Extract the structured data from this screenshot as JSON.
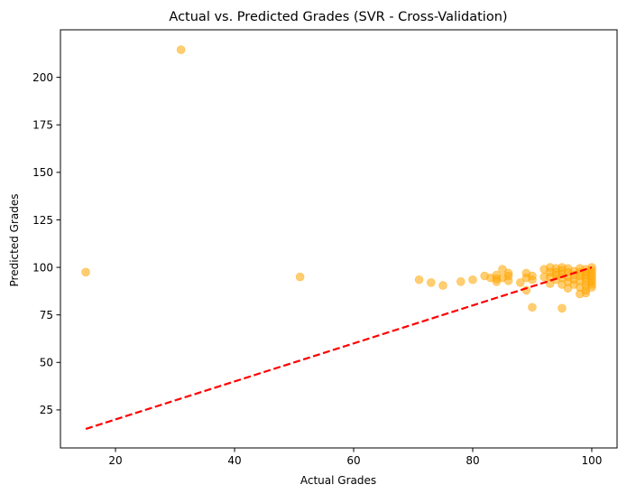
{
  "chart_data": {
    "type": "scatter",
    "title": "Actual vs. Predicted Grades (SVR - Cross-Validation)",
    "xlabel": "Actual Grades",
    "ylabel": "Predicted Grades",
    "xlim": [
      10.75,
      104.25
    ],
    "ylim": [
      5.0,
      225.0
    ],
    "xticks": [
      20,
      40,
      60,
      80,
      100
    ],
    "yticks": [
      25,
      50,
      75,
      100,
      125,
      150,
      175,
      200
    ],
    "grid": false,
    "point_color": "#ffa500",
    "point_alpha": 0.55,
    "reference_line": {
      "x": [
        15,
        100
      ],
      "y": [
        15,
        100
      ],
      "color": "#ff0000",
      "style": "dashed"
    },
    "points": [
      [
        15,
        97.5
      ],
      [
        31,
        214.5
      ],
      [
        51,
        95
      ],
      [
        71,
        93.5
      ],
      [
        73,
        92
      ],
      [
        75,
        90.5
      ],
      [
        78,
        92.5
      ],
      [
        80,
        93.5
      ],
      [
        82,
        95.5
      ],
      [
        83,
        94.5
      ],
      [
        84,
        96
      ],
      [
        84,
        94
      ],
      [
        84,
        92.5
      ],
      [
        85,
        99
      ],
      [
        85,
        94.5
      ],
      [
        86,
        97
      ],
      [
        86,
        93
      ],
      [
        86,
        95.5
      ],
      [
        88,
        92
      ],
      [
        89,
        97
      ],
      [
        89,
        94.5
      ],
      [
        89,
        88
      ],
      [
        90,
        95.5
      ],
      [
        90,
        93.5
      ],
      [
        90,
        79
      ],
      [
        92,
        99
      ],
      [
        92,
        95
      ],
      [
        93,
        100
      ],
      [
        93,
        97.5
      ],
      [
        93,
        95
      ],
      [
        93,
        91.5
      ],
      [
        94,
        99.5
      ],
      [
        94,
        97.5
      ],
      [
        94,
        96
      ],
      [
        94,
        93.5
      ],
      [
        95,
        100
      ],
      [
        95,
        98.5
      ],
      [
        95,
        96.5
      ],
      [
        95,
        94.5
      ],
      [
        95,
        91
      ],
      [
        95,
        78.5
      ],
      [
        96,
        99.5
      ],
      [
        96,
        97.5
      ],
      [
        96,
        95
      ],
      [
        96,
        92.5
      ],
      [
        96,
        89
      ],
      [
        97,
        98
      ],
      [
        97,
        96
      ],
      [
        97,
        93.5
      ],
      [
        97,
        91
      ],
      [
        98,
        99.5
      ],
      [
        98,
        97.5
      ],
      [
        98,
        95.5
      ],
      [
        98,
        93
      ],
      [
        98,
        89.5
      ],
      [
        98,
        86
      ],
      [
        99,
        99
      ],
      [
        99,
        97.5
      ],
      [
        99,
        96
      ],
      [
        99,
        94.5
      ],
      [
        99,
        92.5
      ],
      [
        99,
        90.5
      ],
      [
        99,
        88
      ],
      [
        99,
        86.5
      ],
      [
        100,
        100
      ],
      [
        100,
        98.5
      ],
      [
        100,
        97
      ],
      [
        100,
        95.5
      ],
      [
        100,
        94
      ],
      [
        100,
        92.5
      ],
      [
        100,
        91
      ],
      [
        100,
        89.5
      ]
    ]
  }
}
